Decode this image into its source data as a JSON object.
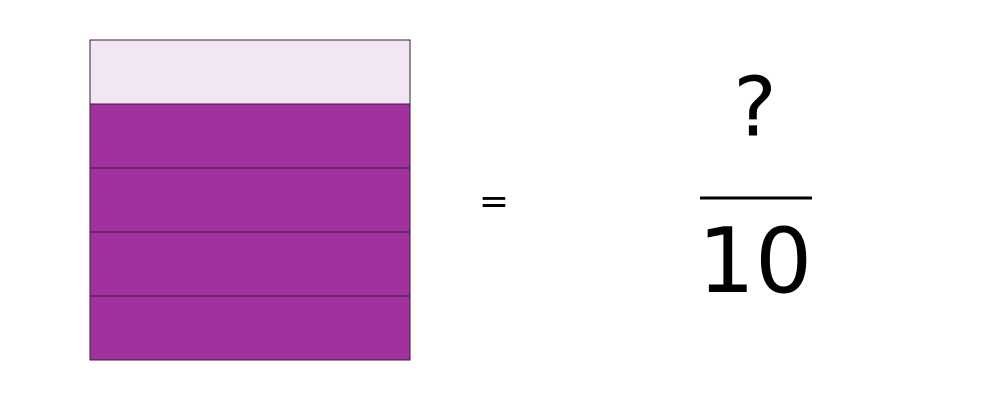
{
  "equals": "=",
  "fraction": {
    "numerator": "?",
    "denominator": "10"
  }
}
